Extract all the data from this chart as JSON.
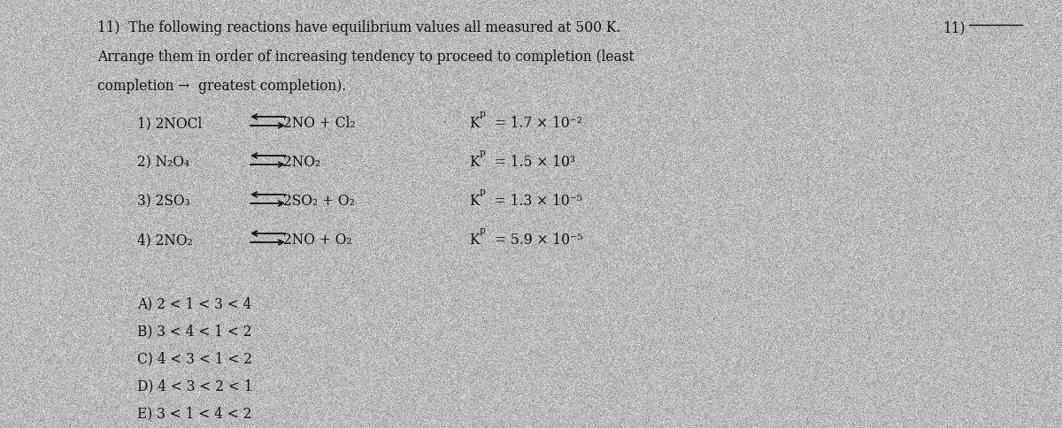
{
  "bg_color": "#b8b8b8",
  "text_color": "#111111",
  "header_line1": "11)  The following reactions have equilibrium values all measured at 500 K.",
  "header_line2": "Arrange them in order of increasing tendency to proceed to completion (least",
  "header_line3": "completion →  greatest completion).",
  "reactions": [
    {
      "label": "1) 2NOCl",
      "product": "2NO + Cl₂",
      "kp_label": "K",
      "kp_sub": "p",
      "kp_value": " = 1.7 × 10",
      "kp_exp": "−2"
    },
    {
      "label": "2) N₂O₄",
      "product": "2NO₂",
      "kp_label": "K",
      "kp_sub": "p",
      "kp_value": " = 1.5 × 10",
      "kp_exp": "3"
    },
    {
      "label": "3) 2SO₃",
      "product": "2SO₂ + O₂",
      "kp_label": "K",
      "kp_sub": "p",
      "kp_value": " = 1.3 × 10",
      "kp_exp": "−5"
    },
    {
      "label": "4) 2NO₂",
      "product": "2NO + O₂",
      "kp_label": "K",
      "kp_sub": "p",
      "kp_value": " = 5.9 × 10",
      "kp_exp": "−5"
    }
  ],
  "answers": [
    "A) 2 < 1 < 3 < 4",
    "B) 3 < 4 < 1 < 2",
    "C) 4 < 3 < 1 < 2",
    "D) 4 < 3 < 2 < 1",
    "E) 3 < 1 < 4 < 2"
  ],
  "side_label": "11)"
}
